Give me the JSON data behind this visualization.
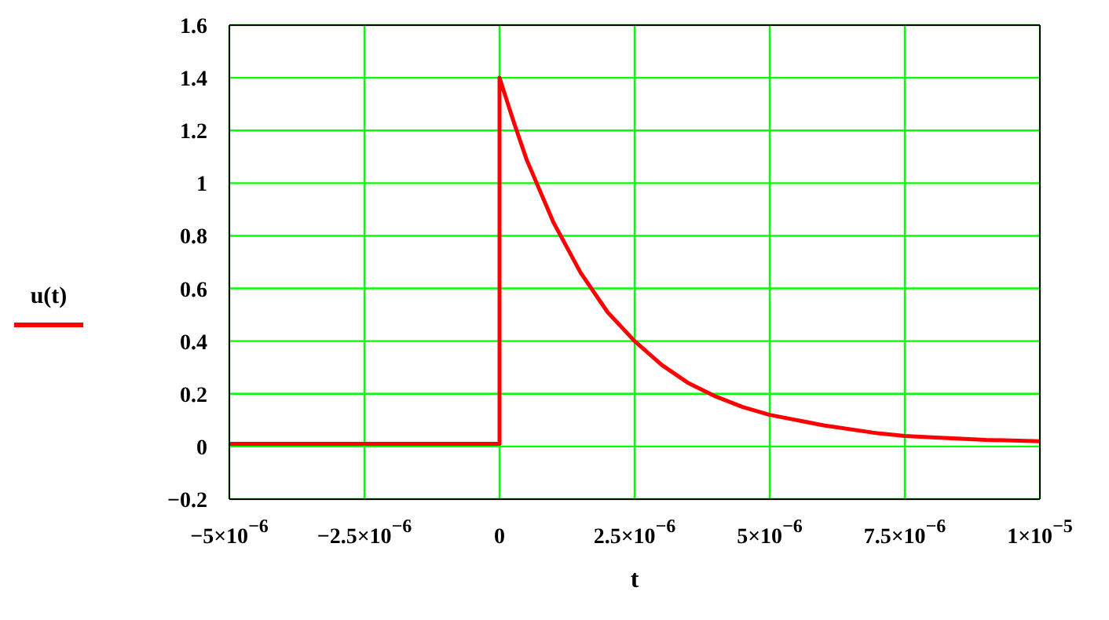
{
  "chart_data": {
    "type": "line",
    "xlabel": "t",
    "legend": "left",
    "grid": true,
    "marker": "none",
    "line_style": "solid",
    "x": [
      -5e-06,
      0,
      0,
      2.5e-07,
      5e-07,
      1e-06,
      1.5e-06,
      2e-06,
      2.5e-06,
      3e-06,
      3.5e-06,
      4e-06,
      4.5e-06,
      5e-06,
      6e-06,
      7e-06,
      7.5e-06,
      8e-06,
      9e-06,
      1e-05
    ],
    "series": [
      {
        "name": "u(t)",
        "color": "#ff0000",
        "values": [
          0.01,
          0.01,
          1.4,
          1.24,
          1.09,
          0.85,
          0.66,
          0.51,
          0.4,
          0.31,
          0.24,
          0.19,
          0.15,
          0.12,
          0.08,
          0.05,
          0.04,
          0.035,
          0.025,
          0.02
        ]
      }
    ],
    "xlim": [
      -5e-06,
      1e-05
    ],
    "xticks": [
      {
        "value": -5e-06,
        "label": "−5×10$^{−6}$"
      },
      {
        "value": -2.5e-06,
        "label": "−2.5×10$^{−6}$"
      },
      0,
      {
        "value": 2.5e-06,
        "label": "2.5×10$^{−6}$"
      },
      {
        "value": 5e-06,
        "label": "5×10$^{−6}$"
      },
      {
        "value": 7.5e-06,
        "label": "7.5×10$^{−6}$"
      },
      {
        "value": 1e-05,
        "label": "1×10$^{−5}$"
      }
    ],
    "ylim": [
      -0.2,
      1.6
    ],
    "yticks": [
      {
        "value": -0.2,
        "label": "−0.2"
      },
      0,
      0.2,
      0.4,
      0.6,
      0.8,
      1,
      1.2,
      1.4,
      1.6
    ]
  }
}
